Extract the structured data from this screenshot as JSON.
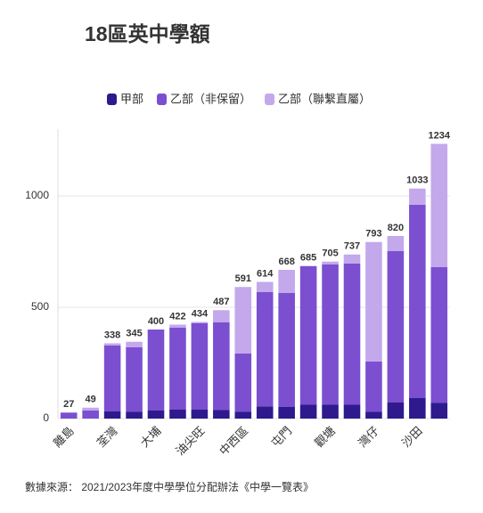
{
  "chart_data": {
    "type": "stacked_bar",
    "title": "18區英中學額",
    "categories": [
      "離島",
      null,
      "荃灣",
      null,
      "大埔",
      null,
      "油尖旺",
      null,
      "中西區",
      null,
      "屯門",
      null,
      "觀塘",
      null,
      "灣仔",
      null,
      "沙田",
      null
    ],
    "series": [
      {
        "name": "甲部",
        "color": "#2e1a8c",
        "values": [
          0,
          0,
          32,
          30,
          36,
          40,
          40,
          38,
          30,
          55,
          52,
          62,
          62,
          62,
          30,
          72,
          92,
          70
        ]
      },
      {
        "name": "乙部（非保留）",
        "color": "#7b4fd0",
        "values": [
          27,
          36,
          296,
          290,
          364,
          368,
          388,
          394,
          262,
          513,
          512,
          623,
          630,
          634,
          226,
          680,
          868,
          610
        ]
      },
      {
        "name": "乙部（聯繫直屬）",
        "color": "#c3a8ec",
        "values": [
          0,
          13,
          10,
          25,
          0,
          14,
          6,
          55,
          299,
          46,
          104,
          0,
          13,
          41,
          537,
          68,
          73,
          554
        ]
      }
    ],
    "totals": [
      27,
      49,
      338,
      345,
      400,
      422,
      434,
      487,
      591,
      614,
      668,
      685,
      705,
      737,
      793,
      820,
      1033,
      1234
    ],
    "ylim": [
      0,
      1300
    ],
    "yticks": [
      0,
      500,
      1000
    ],
    "grid": true,
    "source": "數據來源：  2021/2023年度中學學位分配辦法《中學一覽表》"
  }
}
